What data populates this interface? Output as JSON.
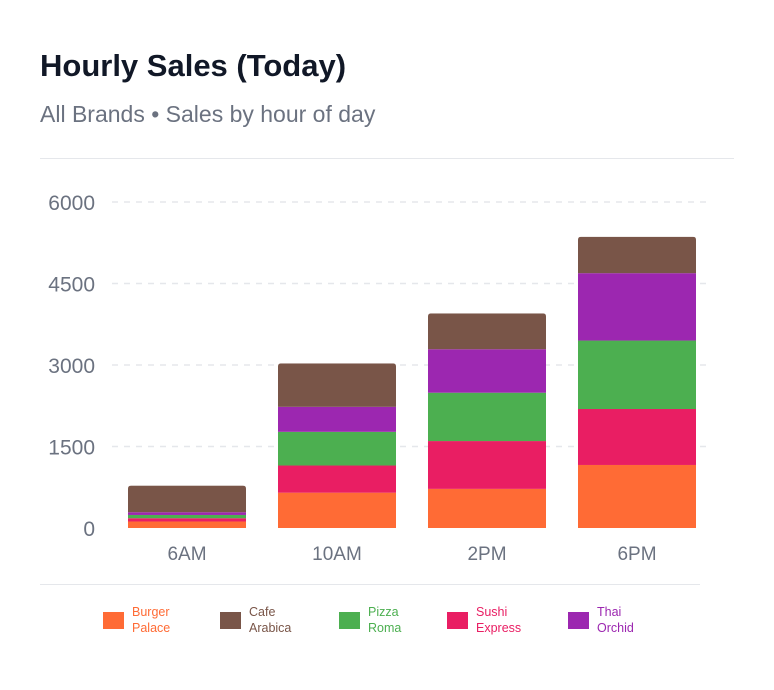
{
  "header": {
    "title": "Hourly Sales (Today)",
    "subtitle": "All Brands • Sales by hour of day"
  },
  "chart_data": {
    "type": "bar",
    "stacked": true,
    "title": "Hourly Sales (Today)",
    "subtitle": "All Brands • Sales by hour of day",
    "categories": [
      "6AM",
      "10AM",
      "2PM",
      "6PM"
    ],
    "yticks": [
      0,
      1500,
      3000,
      4500,
      6000
    ],
    "ylim": [
      0,
      6000
    ],
    "grid": true,
    "legend_position": "bottom",
    "series": [
      {
        "name": "Burger Palace",
        "line1": "Burger",
        "line2": "Palace",
        "color": "#ff6b35",
        "values": [
          120,
          650,
          720,
          1160
        ]
      },
      {
        "name": "Sushi Express",
        "line1": "Sushi",
        "line2": "Express",
        "color": "#e91e63",
        "values": [
          60,
          500,
          880,
          1030
        ]
      },
      {
        "name": "Pizza Roma",
        "line1": "Pizza",
        "line2": "Roma",
        "color": "#4caf50",
        "values": [
          60,
          620,
          890,
          1260
        ]
      },
      {
        "name": "Thai Orchid",
        "line1": "Thai",
        "line2": "Orchid",
        "color": "#9c27b0",
        "values": [
          50,
          460,
          800,
          1240
        ]
      },
      {
        "name": "Cafe Arabica",
        "line1": "Cafe",
        "line2": "Arabica",
        "color": "#795548",
        "values": [
          490,
          800,
          660,
          670
        ]
      }
    ],
    "legend_order": [
      "Burger Palace",
      "Cafe Arabica",
      "Pizza Roma",
      "Sushi Express",
      "Thai Orchid"
    ]
  }
}
